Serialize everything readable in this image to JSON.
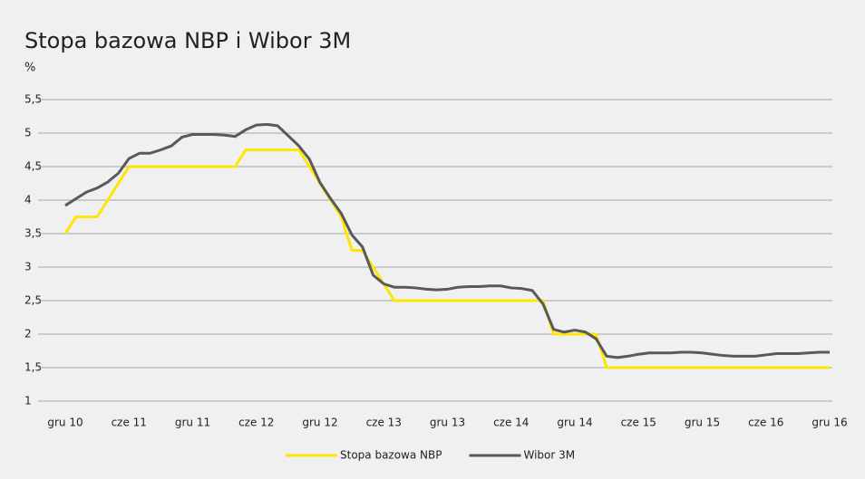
{
  "chart_data": {
    "type": "line",
    "title": "Stopa bazowa NBP i Wibor 3M",
    "y_label": "%",
    "categories": [
      "gru 10",
      null,
      null,
      null,
      null,
      null,
      "cze 11",
      null,
      null,
      null,
      null,
      null,
      "gru 11",
      null,
      null,
      null,
      null,
      null,
      "cze 12",
      null,
      null,
      null,
      null,
      null,
      "gru 12",
      null,
      null,
      null,
      null,
      null,
      "cze 13",
      null,
      null,
      null,
      null,
      null,
      "gru 13",
      null,
      null,
      null,
      null,
      null,
      "cze 14",
      null,
      null,
      null,
      null,
      null,
      "gru 14",
      null,
      null,
      null,
      null,
      null,
      "cze 15",
      null,
      null,
      null,
      null,
      null,
      "gru 15",
      null,
      null,
      null,
      null,
      null,
      "cze 16",
      null,
      null,
      null,
      null,
      null,
      "gru 16"
    ],
    "series": [
      {
        "name": "Stopa bazowa NBP",
        "color": "#ffe600",
        "values": [
          3.5,
          3.75,
          3.75,
          3.75,
          4.0,
          4.25,
          4.5,
          4.5,
          4.5,
          4.5,
          4.5,
          4.5,
          4.5,
          4.5,
          4.5,
          4.5,
          4.5,
          4.75,
          4.75,
          4.75,
          4.75,
          4.75,
          4.75,
          4.5,
          4.25,
          4.0,
          3.75,
          3.25,
          3.25,
          3.0,
          2.75,
          2.5,
          2.5,
          2.5,
          2.5,
          2.5,
          2.5,
          2.5,
          2.5,
          2.5,
          2.5,
          2.5,
          2.5,
          2.5,
          2.5,
          2.5,
          2.0,
          2.0,
          2.0,
          2.0,
          2.0,
          1.5,
          1.5,
          1.5,
          1.5,
          1.5,
          1.5,
          1.5,
          1.5,
          1.5,
          1.5,
          1.5,
          1.5,
          1.5,
          1.5,
          1.5,
          1.5,
          1.5,
          1.5,
          1.5,
          1.5,
          1.5,
          1.5
        ]
      },
      {
        "name": "Wibor 3M",
        "color": "#595959",
        "values": [
          3.92,
          4.02,
          4.12,
          4.18,
          4.27,
          4.4,
          4.62,
          4.7,
          4.7,
          4.75,
          4.81,
          4.94,
          4.98,
          4.98,
          4.98,
          4.97,
          4.95,
          5.05,
          5.12,
          5.13,
          5.11,
          4.96,
          4.81,
          4.61,
          4.26,
          4.02,
          3.8,
          3.48,
          3.3,
          2.88,
          2.75,
          2.7,
          2.7,
          2.69,
          2.67,
          2.66,
          2.67,
          2.7,
          2.71,
          2.71,
          2.72,
          2.72,
          2.69,
          2.68,
          2.65,
          2.45,
          2.07,
          2.03,
          2.06,
          2.03,
          1.93,
          1.67,
          1.65,
          1.67,
          1.7,
          1.72,
          1.72,
          1.72,
          1.73,
          1.73,
          1.72,
          1.7,
          1.68,
          1.67,
          1.67,
          1.67,
          1.69,
          1.71,
          1.71,
          1.71,
          1.72,
          1.73,
          1.73
        ]
      }
    ],
    "ylim": [
      1,
      5.5
    ],
    "yticks": [
      1,
      {
        "value": 1.5,
        "label": "1,5"
      },
      2,
      {
        "value": 2.5,
        "label": "2,5"
      },
      3,
      {
        "value": 3.5,
        "label": "3,5"
      },
      4,
      {
        "value": 4.5,
        "label": "4,5"
      },
      5,
      {
        "value": 5.5,
        "label": "5,5"
      }
    ],
    "grid": true,
    "legend": "bottom"
  }
}
